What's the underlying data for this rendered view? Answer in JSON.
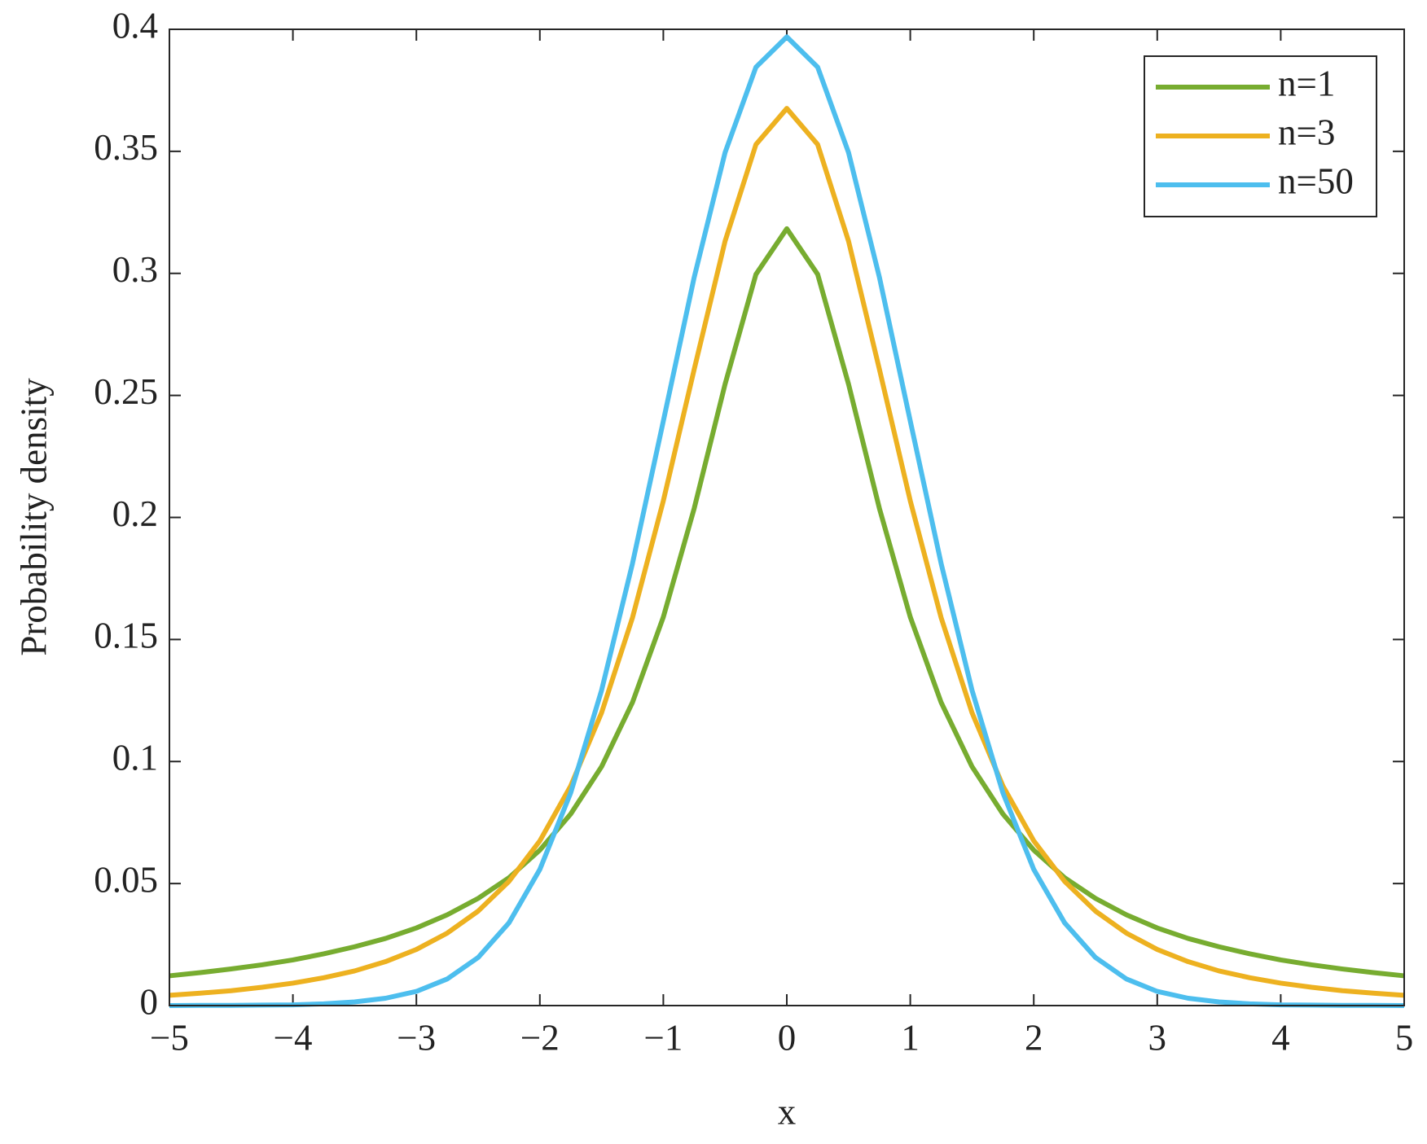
{
  "chart_data": {
    "type": "line",
    "x_label": "x",
    "y_label": "Probability density",
    "x": [
      -5,
      -4.75,
      -4.5,
      -4.25,
      -4,
      -3.75,
      -3.5,
      -3.25,
      -3,
      -2.75,
      -2.5,
      -2.25,
      -2,
      -1.75,
      -1.5,
      -1.25,
      -1,
      -0.75,
      -0.5,
      -0.25,
      0,
      0.25,
      0.5,
      0.75,
      1,
      1.25,
      1.5,
      1.75,
      2,
      2.25,
      2.5,
      2.75,
      3,
      3.25,
      3.5,
      3.75,
      4,
      4.25,
      4.5,
      4.75,
      5
    ],
    "series": [
      {
        "name": "n=1",
        "color": "#77ac30",
        "values": [
          0.0122,
          0.0135,
          0.015,
          0.0167,
          0.0187,
          0.0212,
          0.0241,
          0.0275,
          0.0318,
          0.0372,
          0.0439,
          0.0524,
          0.0637,
          0.0785,
          0.0979,
          0.1242,
          0.1592,
          0.2037,
          0.2546,
          0.2996,
          0.3183,
          0.2996,
          0.2546,
          0.2037,
          0.1592,
          0.1242,
          0.0979,
          0.0785,
          0.0637,
          0.0524,
          0.0439,
          0.0372,
          0.0318,
          0.0275,
          0.0241,
          0.0212,
          0.0187,
          0.0167,
          0.015,
          0.0135,
          0.0122
        ]
      },
      {
        "name": "n=3",
        "color": "#edb120",
        "values": [
          0.0042,
          0.0051,
          0.0061,
          0.0075,
          0.0092,
          0.0114,
          0.0142,
          0.018,
          0.023,
          0.0297,
          0.0387,
          0.0509,
          0.0675,
          0.09,
          0.12,
          0.1589,
          0.2068,
          0.2607,
          0.3132,
          0.3528,
          0.3676,
          0.3528,
          0.3132,
          0.2607,
          0.2068,
          0.1589,
          0.12,
          0.09,
          0.0675,
          0.0509,
          0.0387,
          0.0297,
          0.023,
          0.018,
          0.0142,
          0.0114,
          0.0092,
          0.0075,
          0.0061,
          0.0051,
          0.0042
        ]
      },
      {
        "name": "n=50",
        "color": "#4dbeee",
        "values": [
          0.0,
          0.0001,
          0.0001,
          0.0002,
          0.0003,
          0.0007,
          0.0015,
          0.003,
          0.0058,
          0.0109,
          0.0197,
          0.0339,
          0.0558,
          0.0872,
          0.1292,
          0.1811,
          0.2395,
          0.2984,
          0.3495,
          0.3845,
          0.3969,
          0.3845,
          0.3495,
          0.2984,
          0.2395,
          0.1811,
          0.1292,
          0.0872,
          0.0558,
          0.0339,
          0.0197,
          0.0109,
          0.0058,
          0.003,
          0.0015,
          0.0007,
          0.0003,
          0.0002,
          0.0001,
          0.0001,
          0.0
        ]
      }
    ],
    "xlim": [
      -5,
      5
    ],
    "xticks": [
      {
        "value": -5,
        "label": "−5"
      },
      {
        "value": -4,
        "label": "−4"
      },
      {
        "value": -3,
        "label": "−3"
      },
      {
        "value": -2,
        "label": "−2"
      },
      {
        "value": -1,
        "label": "−1"
      },
      0,
      1,
      2,
      3,
      4,
      5
    ],
    "ylim": [
      0,
      0.4
    ],
    "yticks": [
      0,
      0.05,
      0.1,
      0.15,
      0.2,
      0.25,
      0.3,
      0.35,
      0.4
    ],
    "grid": false,
    "legend": "northeast"
  }
}
